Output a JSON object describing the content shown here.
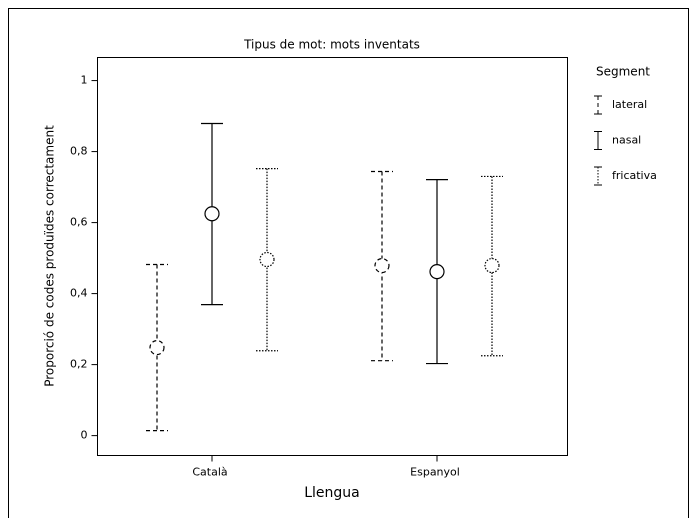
{
  "chart_data": {
    "type": "errorbar",
    "title": "Tipus de mot: mots inventats",
    "xlabel": "Llengua",
    "ylabel": "Proporció de codes produïdes correctament",
    "legend_title": "Segment",
    "categories": [
      "Català",
      "Espanyol"
    ],
    "series": [
      {
        "name": "lateral",
        "color": "#000000",
        "linestyle": "dashed",
        "values": [
          0.248,
          0.479
        ],
        "lower": [
          0.014,
          0.211
        ],
        "upper": [
          0.482,
          0.744
        ]
      },
      {
        "name": "nasal",
        "color": "#000000",
        "linestyle": "solid",
        "values": [
          0.625,
          0.462
        ],
        "lower": [
          0.369,
          0.203
        ],
        "upper": [
          0.879,
          0.721
        ]
      },
      {
        "name": "fricativa",
        "color": "#000000",
        "linestyle": "dotted",
        "values": [
          0.496,
          0.479
        ],
        "lower": [
          0.239,
          0.225
        ],
        "upper": [
          0.752,
          0.73
        ]
      }
    ],
    "ylim": [
      -0.056,
      1.065
    ],
    "yticks": [
      0,
      {
        "value": 0.2,
        "label": "0,2"
      },
      {
        "value": 0.4,
        "label": "0,4"
      },
      {
        "value": 0.6,
        "label": "0,6"
      },
      {
        "value": 0.8,
        "label": "0,8"
      },
      1
    ],
    "legend": "right"
  }
}
